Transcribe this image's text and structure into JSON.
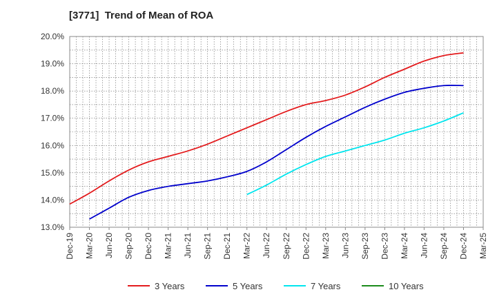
{
  "chart_data": {
    "type": "line",
    "title": "[3771]  Trend of Mean of ROA",
    "xlabel": "",
    "ylabel": "",
    "x_tick_labels": [
      "Dec-19",
      "Mar-20",
      "Jun-20",
      "Sep-20",
      "Dec-20",
      "Mar-21",
      "Jun-21",
      "Sep-21",
      "Dec-21",
      "Mar-22",
      "Jun-22",
      "Sep-22",
      "Dec-22",
      "Mar-23",
      "Jun-23",
      "Sep-23",
      "Dec-23",
      "Mar-24",
      "Jun-24",
      "Sep-24",
      "Dec-24",
      "Mar-25"
    ],
    "y_tick_labels": [
      "13.0%",
      "14.0%",
      "15.0%",
      "16.0%",
      "17.0%",
      "18.0%",
      "19.0%",
      "20.0%"
    ],
    "ylim": [
      13.0,
      20.0
    ],
    "y_unit": "%",
    "grid": true,
    "legend_position": "bottom",
    "series": [
      {
        "name": "3 Years",
        "color": "#e31a1c",
        "start_index": 0,
        "values": [
          13.85,
          14.25,
          14.7,
          15.1,
          15.4,
          15.6,
          15.8,
          16.05,
          16.35,
          16.65,
          16.95,
          17.25,
          17.5,
          17.65,
          17.85,
          18.15,
          18.5,
          18.8,
          19.1,
          19.3,
          19.4
        ]
      },
      {
        "name": "5 Years",
        "color": "#0000cc",
        "start_index": 1,
        "values": [
          13.3,
          13.7,
          14.1,
          14.35,
          14.5,
          14.6,
          14.7,
          14.85,
          15.05,
          15.4,
          15.85,
          16.3,
          16.7,
          17.05,
          17.4,
          17.7,
          17.95,
          18.1,
          18.2,
          18.2
        ]
      },
      {
        "name": "7 Years",
        "color": "#00e5ee",
        "start_index": 9,
        "values": [
          14.2,
          14.55,
          14.95,
          15.3,
          15.6,
          15.8,
          16.0,
          16.2,
          16.45,
          16.65,
          16.9,
          17.2
        ]
      },
      {
        "name": "10 Years",
        "color": "#1a8a1a",
        "start_index": 0,
        "values": []
      }
    ]
  }
}
